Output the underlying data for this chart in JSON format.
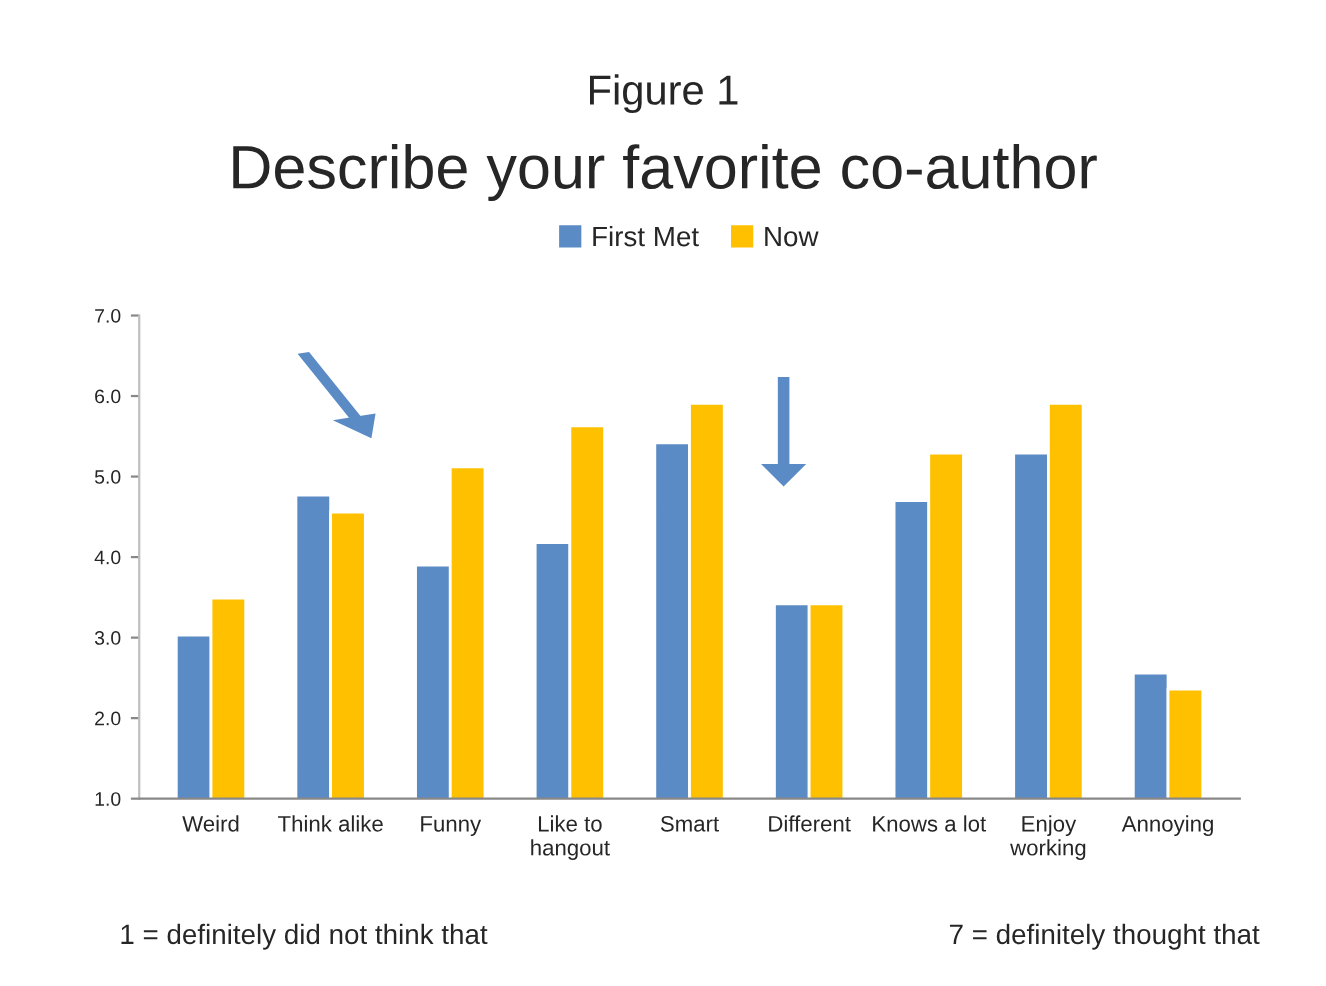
{
  "chart_data": {
    "type": "bar",
    "title": "Describe your favorite co-author",
    "subtitle": "Figure 1",
    "categories": [
      "Weird",
      "Think alike",
      "Funny",
      "Like to\nhangout",
      "Smart",
      "Different",
      "Knows a lot",
      "Enjoy\nworking",
      "Annoying"
    ],
    "series": [
      {
        "name": "First Met",
        "color": "#5b8bc5",
        "values": [
          3.03,
          4.77,
          3.9,
          4.18,
          5.42,
          3.42,
          4.7,
          5.29,
          2.56
        ]
      },
      {
        "name": "Now",
        "color": "#ffc000",
        "values": [
          3.49,
          4.56,
          5.12,
          5.63,
          5.91,
          3.42,
          5.29,
          5.91,
          2.36
        ]
      }
    ],
    "ylim": [
      1,
      7
    ],
    "yticks": [
      {
        "value": 1,
        "label": "1.0"
      },
      {
        "value": 2,
        "label": "2.0"
      },
      {
        "value": 3,
        "label": "3.0"
      },
      {
        "value": 4,
        "label": "4.0"
      },
      {
        "value": 5,
        "label": "5.0"
      },
      {
        "value": 6,
        "label": "6.0"
      },
      {
        "value": 7,
        "label": "7.0"
      }
    ],
    "legend": "top",
    "annotations": [
      "1 = definitely did not think that",
      "7 = definitely thought that"
    ]
  }
}
